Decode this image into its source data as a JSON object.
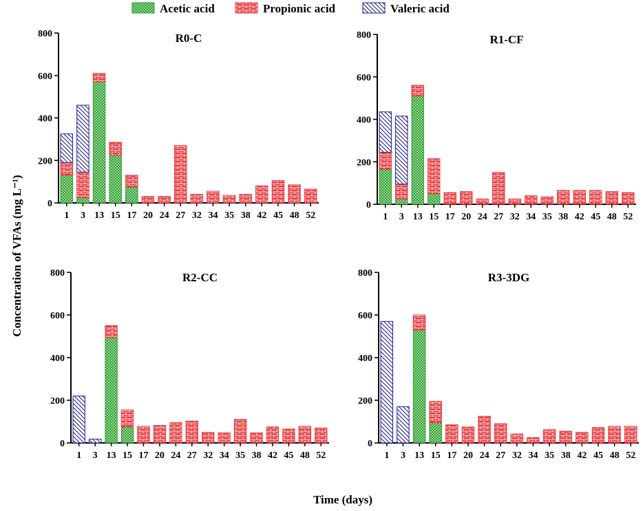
{
  "figure": {
    "ylabel": "Concentration of VFAs (mg L⁻¹)",
    "xlabel": "Time (days)"
  },
  "legend": [
    {
      "name": "Acetic acid",
      "color": "#2e9e2e",
      "pattern": "crosshatch"
    },
    {
      "name": "Propionic acid",
      "color": "#e8393d",
      "pattern": "brick"
    },
    {
      "name": "Valeric acid",
      "color": "#1f1f8f",
      "pattern": "diagonal"
    }
  ],
  "chart_data": [
    {
      "type": "bar",
      "stacked": true,
      "title": "R0-C",
      "ylim": [
        0,
        800
      ],
      "yticks": [
        0,
        200,
        400,
        600,
        800
      ],
      "categories": [
        "1",
        "3",
        "13",
        "15",
        "17",
        "20",
        "24",
        "27",
        "32",
        "34",
        "35",
        "38",
        "42",
        "45",
        "48",
        "52"
      ],
      "series": [
        {
          "name": "Acetic acid",
          "values": [
            130,
            25,
            570,
            225,
            75,
            0,
            0,
            0,
            0,
            0,
            0,
            0,
            0,
            0,
            0,
            0
          ]
        },
        {
          "name": "Propionic acid",
          "values": [
            60,
            120,
            40,
            60,
            55,
            30,
            30,
            270,
            40,
            55,
            35,
            40,
            80,
            105,
            85,
            65
          ]
        },
        {
          "name": "Valeric acid",
          "values": [
            135,
            315,
            0,
            0,
            0,
            0,
            0,
            0,
            0,
            0,
            0,
            0,
            0,
            0,
            0,
            0
          ]
        }
      ]
    },
    {
      "type": "bar",
      "stacked": true,
      "title": "R1-CF",
      "ylim": [
        0,
        800
      ],
      "yticks": [
        0,
        200,
        400,
        600,
        800
      ],
      "categories": [
        "1",
        "3",
        "13",
        "15",
        "17",
        "20",
        "24",
        "27",
        "32",
        "34",
        "35",
        "38",
        "42",
        "45",
        "48",
        "52"
      ],
      "series": [
        {
          "name": "Acetic acid",
          "values": [
            165,
            25,
            510,
            50,
            0,
            0,
            0,
            0,
            0,
            0,
            0,
            0,
            0,
            0,
            0,
            0
          ]
        },
        {
          "name": "Propionic acid",
          "values": [
            80,
            70,
            50,
            165,
            55,
            60,
            25,
            150,
            25,
            40,
            35,
            65,
            65,
            65,
            60,
            55
          ]
        },
        {
          "name": "Valeric acid",
          "values": [
            190,
            320,
            0,
            0,
            0,
            0,
            0,
            0,
            0,
            0,
            0,
            0,
            0,
            0,
            0,
            0
          ]
        }
      ]
    },
    {
      "type": "bar",
      "stacked": true,
      "title": "R2-CC",
      "ylim": [
        0,
        800
      ],
      "yticks": [
        0,
        200,
        400,
        600,
        800
      ],
      "categories": [
        "1",
        "3",
        "13",
        "15",
        "17",
        "20",
        "24",
        "27",
        "32",
        "34",
        "35",
        "38",
        "42",
        "45",
        "48",
        "52"
      ],
      "series": [
        {
          "name": "Acetic acid",
          "values": [
            0,
            0,
            495,
            75,
            0,
            0,
            0,
            0,
            0,
            0,
            0,
            0,
            0,
            0,
            0,
            0
          ]
        },
        {
          "name": "Propionic acid",
          "values": [
            0,
            0,
            55,
            80,
            78,
            82,
            95,
            102,
            50,
            48,
            110,
            48,
            75,
            65,
            78,
            70
          ]
        },
        {
          "name": "Valeric acid",
          "values": [
            220,
            18,
            0,
            0,
            0,
            0,
            0,
            0,
            0,
            0,
            0,
            0,
            0,
            0,
            0,
            0
          ]
        }
      ]
    },
    {
      "type": "bar",
      "stacked": true,
      "title": "R3-3DG",
      "ylim": [
        0,
        800
      ],
      "yticks": [
        0,
        200,
        400,
        600,
        800
      ],
      "categories": [
        "1",
        "3",
        "13",
        "15",
        "17",
        "20",
        "24",
        "27",
        "32",
        "34",
        "35",
        "38",
        "42",
        "45",
        "48",
        "52"
      ],
      "series": [
        {
          "name": "Acetic acid",
          "values": [
            0,
            0,
            530,
            95,
            0,
            0,
            0,
            0,
            0,
            0,
            0,
            0,
            0,
            0,
            0,
            0
          ]
        },
        {
          "name": "Propionic acid",
          "values": [
            0,
            0,
            70,
            100,
            85,
            75,
            125,
            90,
            42,
            25,
            62,
            55,
            50,
            72,
            78,
            78
          ]
        },
        {
          "name": "Valeric acid",
          "values": [
            570,
            170,
            0,
            0,
            0,
            0,
            0,
            0,
            0,
            0,
            0,
            0,
            0,
            0,
            0,
            0
          ]
        }
      ]
    }
  ]
}
